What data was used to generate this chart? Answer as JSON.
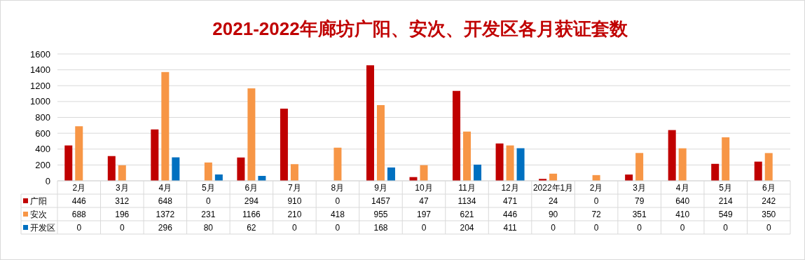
{
  "chart_data": {
    "type": "bar",
    "title": "2021-2022年廊坊广阳、安次、开发区各月获证套数",
    "categories": [
      "2月",
      "3月",
      "4月",
      "5月",
      "6月",
      "7月",
      "8月",
      "9月",
      "10月",
      "11月",
      "12月",
      "2022年1月",
      "2月",
      "3月",
      "4月",
      "5月",
      "6月"
    ],
    "series": [
      {
        "name": "广阳",
        "color": "#c00000",
        "values": [
          446,
          312,
          648,
          0,
          294,
          910,
          0,
          1457,
          47,
          1134,
          471,
          24,
          0,
          79,
          640,
          214,
          242
        ]
      },
      {
        "name": "安次",
        "color": "#f79646",
        "values": [
          688,
          196,
          1372,
          231,
          1166,
          210,
          418,
          955,
          197,
          621,
          446,
          90,
          72,
          351,
          410,
          549,
          350
        ]
      },
      {
        "name": "开发区",
        "color": "#0070c0",
        "values": [
          0,
          0,
          296,
          80,
          62,
          0,
          0,
          168,
          0,
          204,
          411,
          0,
          0,
          0,
          0,
          0,
          0
        ]
      }
    ],
    "ylim": [
      0,
      1600
    ],
    "yticks": [
      0,
      200,
      400,
      600,
      800,
      1000,
      1200,
      1400,
      1600
    ],
    "grid": "y",
    "legend": "bottom",
    "data_labels": true
  }
}
